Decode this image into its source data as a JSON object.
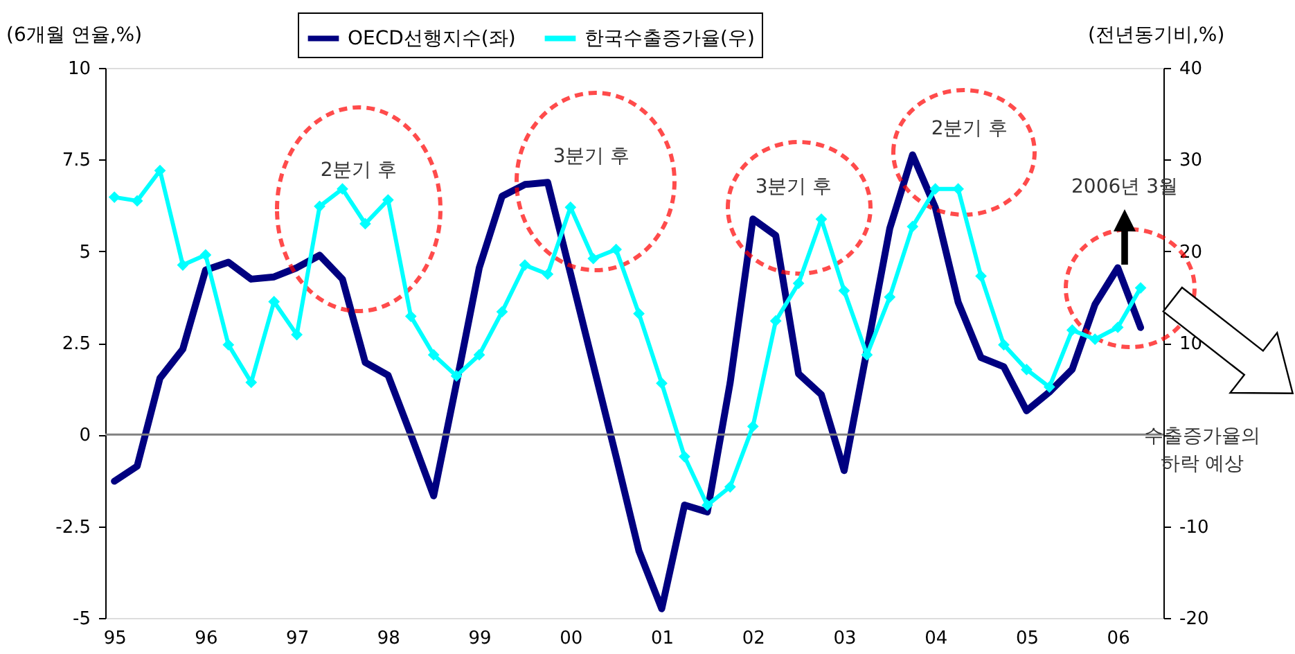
{
  "chart_data": {
    "type": "line",
    "x": [
      1995,
      1995.25,
      1995.5,
      1995.75,
      1996,
      1996.25,
      1996.5,
      1996.75,
      1997,
      1997.25,
      1997.5,
      1997.75,
      1998,
      1998.25,
      1998.5,
      1998.75,
      1999,
      1999.25,
      1999.5,
      1999.75,
      2000,
      2000.25,
      2000.5,
      2000.75,
      2001,
      2001.25,
      2001.5,
      2001.75,
      2002,
      2002.25,
      2002.5,
      2002.75,
      2003,
      2003.25,
      2003.5,
      2003.75,
      2004,
      2004.25,
      2004.5,
      2004.75,
      2005,
      2005.25,
      2005.5,
      2005.75,
      2006,
      2006.25
    ],
    "series": [
      {
        "name": "OECD선행지수(좌)",
        "color": "#000080",
        "marker": "none",
        "values": [
          -1.27,
          -0.86,
          1.54,
          2.33,
          4.49,
          4.7,
          4.24,
          4.3,
          4.55,
          4.89,
          4.24,
          1.97,
          1.62,
          0.0,
          -1.67,
          1.4,
          4.55,
          6.5,
          6.82,
          6.88,
          4.4,
          1.9,
          -0.6,
          -3.17,
          -4.75,
          -1.92,
          -2.11,
          1.41,
          5.88,
          5.43,
          1.66,
          1.09,
          -0.98,
          2.3,
          5.62,
          7.63,
          6.19,
          3.61,
          2.1,
          1.85,
          0.65,
          1.16,
          1.78,
          3.55,
          4.55,
          2.92
        ]
      },
      {
        "name": "한국수출증가율(우)",
        "color": "#00ffff",
        "marker": "diamond",
        "axis": "y2",
        "values": [
          25.9,
          25.5,
          28.8,
          18.5,
          19.6,
          9.8,
          5.7,
          14.5,
          10.9,
          24.9,
          26.8,
          23.0,
          25.6,
          12.9,
          8.7,
          6.4,
          8.7,
          13.4,
          18.5,
          17.5,
          24.8,
          19.2,
          20.2,
          13.2,
          5.6,
          -2.4,
          -7.7,
          -5.7,
          0.9,
          12.4,
          16.5,
          23.5,
          15.7,
          8.7,
          15.0,
          22.7,
          26.8,
          26.8,
          17.3,
          9.8,
          7.1,
          5.2,
          11.4,
          10.4,
          11.7,
          16.0
        ]
      }
    ],
    "ylabel": "(6개월 연율,%)",
    "y2label": "(전년동기비,%)",
    "xlim": [
      1994.9,
      2006.5
    ],
    "xticks": [
      {
        "value": 1995,
        "label": "95"
      },
      {
        "value": 1996,
        "label": "96"
      },
      {
        "value": 1997,
        "label": "97"
      },
      {
        "value": 1998,
        "label": "98"
      },
      {
        "value": 1999,
        "label": "99"
      },
      {
        "value": 2000,
        "label": "00"
      },
      {
        "value": 2001,
        "label": "01"
      },
      {
        "value": 2002,
        "label": "02"
      },
      {
        "value": 2003,
        "label": "03"
      },
      {
        "value": 2004,
        "label": "04"
      },
      {
        "value": 2005,
        "label": "05"
      },
      {
        "value": 2006,
        "label": "06"
      }
    ],
    "ylim": [
      -5,
      10
    ],
    "yticks": [
      -5,
      -2.5,
      0,
      2.5,
      5,
      7.5,
      10
    ],
    "y2lim": [
      -20,
      40
    ],
    "y2ticks": [
      -20,
      -10,
      {
        "value": 0,
        "label": null
      },
      10,
      20,
      30,
      40
    ],
    "ref_lines": [
      {
        "axis": "y",
        "value": 0,
        "color": "#808080"
      }
    ],
    "annotations": [
      "2분기 후",
      "3분기 후",
      "3분기 후",
      "2분기 후",
      "2006년 3월",
      "수출증가율의\n하락 예상"
    ],
    "legend": "top",
    "grid": false,
    "line_style": "solid"
  }
}
